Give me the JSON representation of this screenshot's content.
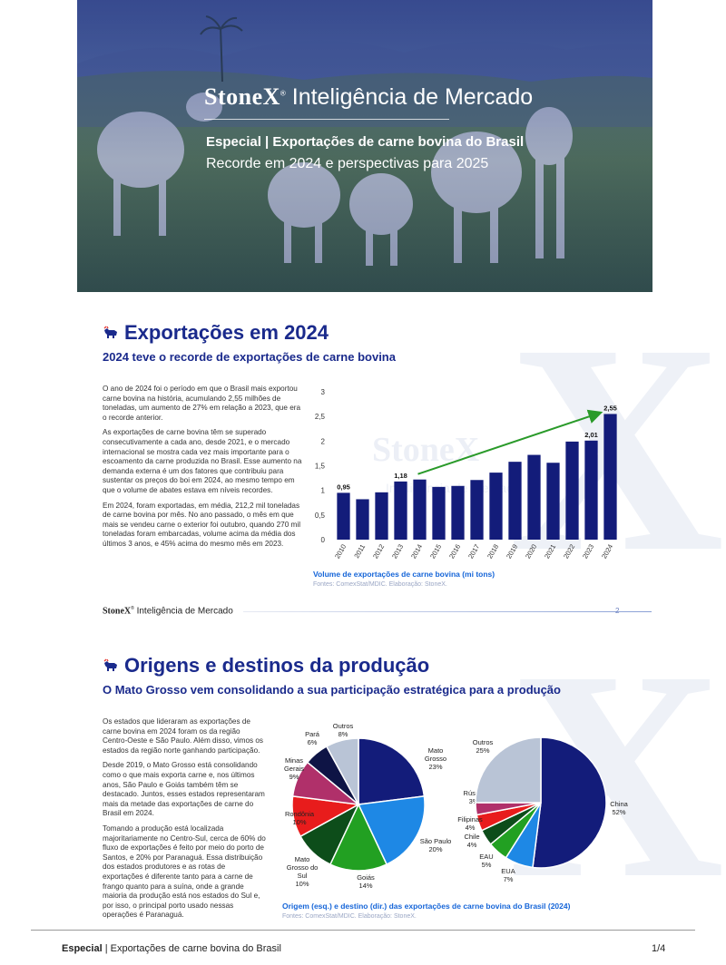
{
  "hero": {
    "brand_name": "StoneX",
    "brand_tm": "®",
    "brand_tagline": "Inteligência de Mercado",
    "title": "Especial | Exportações de carne bovina do Brasil",
    "subtitle": "Recorde em 2024 e perspectivas para 2025"
  },
  "section1": {
    "title": "Exportações em 2024",
    "subtitle": "2024 teve o recorde de exportações de carne bovina",
    "paragraphs": [
      "O ano de 2024 foi o período em que o Brasil mais exportou carne bovina na história, acumulando 2,55 milhões de toneladas, um aumento de 27% em relação a 2023, que era o recorde anterior.",
      "As exportações de carne bovina têm se superado consecutivamente a cada ano, desde 2021, e o mercado internacional se mostra cada vez mais importante para o escoamento da carne produzida no Brasil. Esse aumento na demanda externa é um dos fatores que contribuiu para sustentar os preços do boi em 2024, ao mesmo tempo em que o volume de abates estava em níveis recordes.",
      "Em 2024, foram exportadas, em média, 212,2 mil toneladas de carne bovina por mês. No ano passado, o mês em que mais se vendeu carne o exterior foi outubro, quando 270 mil toneladas foram embarcadas, volume acima da média dos últimos 3 anos, e 45% acima do mesmo mês em 2023."
    ],
    "caption": "Volume de exportações de carne bovina (mi tons)",
    "source": "Fontes: ComexStat/MDIC. Elaboração: StoneX.",
    "watermark_brand": "StoneX",
    "watermark_tagline": "Inteligência de Mercado"
  },
  "page_footer": {
    "brand_name": "StoneX",
    "brand_tm": "®",
    "brand_tagline": "Inteligência de Mercado",
    "page_number": "2"
  },
  "section2": {
    "title": "Origens e destinos da produção",
    "subtitle": "O Mato Grosso vem consolidando a sua participação estratégica para a produção",
    "paragraphs": [
      "Os estados que lideraram as exportações de carne bovina em 2024 foram os da região Centro-Oeste e São Paulo. Além disso, vimos os estados da região norte ganhando participação.",
      "Desde 2019, o Mato Grosso está consolidando como o que mais exporta carne e, nos últimos anos, São Paulo e Goiás também têm se destacado. Juntos, esses estados representaram mais da metade das exportações de carne do Brasil em 2024.",
      "Tomando a produção está localizada majoritariamente no Centro-Sul, cerca de 60% do fluxo de exportações é feito por meio do porto de Santos, e 20% por Paranaguá. Essa distribuição dos estados produtores e as rotas de exportações é diferente tanto para a carne de frango quanto para a suína, onde a grande maioria da produção está nos estados do Sul e, por isso, o principal porto usado nessas operações é Paranaguá."
    ],
    "caption": "Origem (esq.) e destino (dir.) das exportações de carne bovina do Brasil (2024)",
    "source": "Fontes: ComexStat/MDIC. Elaboração: StoneX."
  },
  "document_footer": {
    "title_bold": "Especial",
    "title_rest": " | Exportações de carne bovina do Brasil",
    "page": "1/4"
  },
  "colors": {
    "navy": "#1a2a8c",
    "bar": "#131c7a",
    "trend": "#2a9a2a",
    "caption_blue": "#1565d8"
  },
  "chart_data": [
    {
      "type": "bar",
      "categories": [
        "2010",
        "2011",
        "2012",
        "2013",
        "2014",
        "2015",
        "2016",
        "2017",
        "2018",
        "2019",
        "2020",
        "2021",
        "2022",
        "2023",
        "2024"
      ],
      "values": [
        0.95,
        0.82,
        0.96,
        1.18,
        1.22,
        1.07,
        1.09,
        1.21,
        1.36,
        1.58,
        1.72,
        1.56,
        1.99,
        2.01,
        2.55
      ],
      "data_labels": {
        "2010": "0,95",
        "2013": "1,18",
        "2023": "2,01",
        "2024": "2,55"
      },
      "yticks": [
        "0",
        "0,5",
        "1",
        "1,5",
        "2",
        "2,5",
        "3"
      ],
      "ylim": [
        0,
        3
      ],
      "trend_arrow": {
        "from": "2014",
        "to": "2024"
      },
      "grid": false
    },
    {
      "type": "pie",
      "slices": [
        {
          "label": "Mato Grosso",
          "value": 23,
          "text": "23%",
          "color": "#131c7a"
        },
        {
          "label": "São Paulo",
          "value": 20,
          "text": "20%",
          "color": "#1e88e5"
        },
        {
          "label": "Goiás",
          "value": 14,
          "text": "14%",
          "color": "#22a022"
        },
        {
          "label": "Mato Grosso do Sul",
          "value": 10,
          "text": "10%",
          "color": "#0d4d1a"
        },
        {
          "label": "Rondônia",
          "value": 10,
          "text": "10%",
          "color": "#e81c1c"
        },
        {
          "label": "Minas Gerais",
          "value": 9,
          "text": "9%",
          "color": "#b0306a"
        },
        {
          "label": "Pará",
          "value": 6,
          "text": "6%",
          "color": "#0e1445"
        },
        {
          "label": "Outros",
          "value": 8,
          "text": "8%",
          "color": "#b9c4d6"
        }
      ]
    },
    {
      "type": "pie",
      "slices": [
        {
          "label": "China",
          "value": 52,
          "text": "52%",
          "color": "#131c7a"
        },
        {
          "label": "EUA",
          "value": 7,
          "text": "7%",
          "color": "#1e88e5"
        },
        {
          "label": "EAU",
          "value": 5,
          "text": "5%",
          "color": "#22a022"
        },
        {
          "label": "Chile",
          "value": 4,
          "text": "4%",
          "color": "#0d4d1a"
        },
        {
          "label": "Filipinas",
          "value": 4,
          "text": "4%",
          "color": "#e81c1c"
        },
        {
          "label": "Rússia",
          "value": 3,
          "text": "3%",
          "color": "#b0306a"
        },
        {
          "label": "Outros",
          "value": 25,
          "text": "25%",
          "color": "#b9c4d6"
        }
      ]
    }
  ]
}
